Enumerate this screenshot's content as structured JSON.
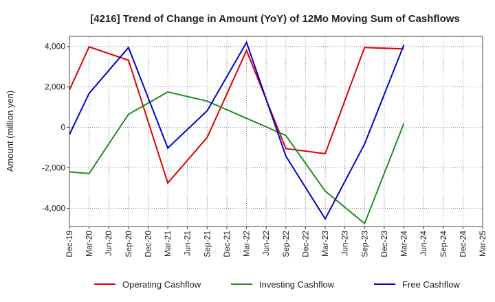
{
  "chart_data": {
    "type": "line",
    "title": "[4216]  Trend of Change in Amount (YoY) of 12Mo Moving Sum of Cashflows",
    "xlabel": "",
    "ylabel": "Amount (million yen)",
    "ylim": [
      -4900,
      4500
    ],
    "yticks": [
      4000,
      2000,
      0,
      -2000,
      -4000
    ],
    "ytick_labels": [
      "4,000",
      "2,000",
      "0",
      "-2,000",
      "-4,000"
    ],
    "grid": true,
    "legend_position": "bottom",
    "categories": [
      "Dec-19",
      "Mar-20",
      "Jun-20",
      "Sep-20",
      "Dec-20",
      "Mar-21",
      "Jun-21",
      "Sep-21",
      "Dec-21",
      "Mar-22",
      "Jun-22",
      "Sep-22",
      "Dec-22",
      "Mar-23",
      "Jun-23",
      "Sep-23",
      "Dec-23",
      "Mar-24",
      "Jun-24",
      "Sep-24",
      "Dec-24",
      "Mar-25"
    ],
    "series": [
      {
        "name": "Operating Cashflow",
        "color": "#dd0000",
        "values": [
          1850,
          3980,
          null,
          3320,
          null,
          -2750,
          null,
          -500,
          null,
          3800,
          null,
          -1050,
          null,
          -1300,
          null,
          3950,
          null,
          3880,
          null,
          null,
          null,
          null
        ]
      },
      {
        "name": "Investing Cashflow",
        "color": "#228b22",
        "values": [
          -2200,
          -2280,
          null,
          650,
          null,
          1750,
          null,
          1300,
          null,
          null,
          null,
          -400,
          null,
          -3150,
          null,
          -4750,
          null,
          200,
          null,
          null,
          null,
          null
        ]
      },
      {
        "name": "Free Cashflow",
        "color": "#0000cc",
        "values": [
          -350,
          1680,
          null,
          3950,
          null,
          -1020,
          null,
          820,
          null,
          4200,
          null,
          -1420,
          null,
          -4520,
          null,
          -820,
          null,
          4080,
          null,
          null,
          null,
          null
        ]
      }
    ]
  }
}
